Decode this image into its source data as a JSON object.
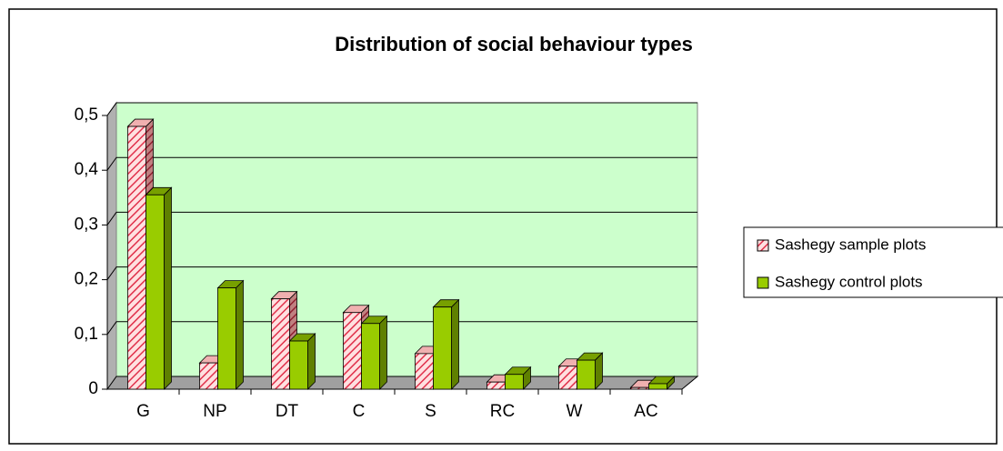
{
  "chart_data": {
    "type": "bar3d",
    "title": "Distribution of social behaviour types",
    "categories": [
      "G",
      "NP",
      "DT",
      "C",
      "S",
      "RC",
      "W",
      "AC"
    ],
    "series": [
      {
        "name": "Sashegy sample plots",
        "color": "#ff9999",
        "values": [
          0.48,
          0.048,
          0.165,
          0.14,
          0.065,
          0.013,
          0.042,
          0.003
        ]
      },
      {
        "name": "Sashegy control plots",
        "color": "#99cc00",
        "values": [
          0.355,
          0.185,
          0.088,
          0.12,
          0.15,
          0.027,
          0.053,
          0.01
        ]
      }
    ],
    "ylim": [
      0,
      0.5
    ],
    "yticks": [
      0,
      {
        "value": 0.1,
        "label": "0,1"
      },
      {
        "value": 0.2,
        "label": "0,2"
      },
      {
        "value": 0.3,
        "label": "0,3"
      },
      {
        "value": 0.4,
        "label": "0,4"
      },
      {
        "value": 0.5,
        "label": "0,5"
      }
    ],
    "grid": true,
    "legend": "right"
  }
}
